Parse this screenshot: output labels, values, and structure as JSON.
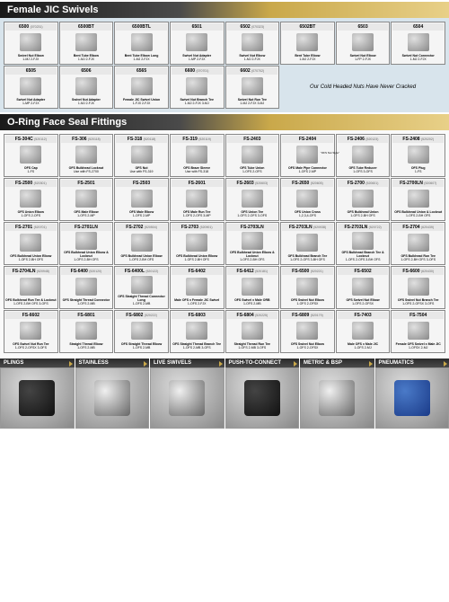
{
  "section1": {
    "title": "Female JIC Swivels",
    "note": "Our Cold Headed Nuts Have Never Cracked",
    "items": [
      {
        "pn": "6500",
        "code": "(070231)",
        "desc": "Swivel Nut Elbow",
        "spec": "1-MJ 2-FJX"
      },
      {
        "pn": "6500BT",
        "code": "",
        "desc": "Bent Tube Elbow",
        "spec": "1-MJ 2-FJX"
      },
      {
        "pn": "6500BTL",
        "code": "",
        "desc": "Bent Tube Elbow Long",
        "spec": "1-MJ 2-FJX"
      },
      {
        "pn": "6501",
        "code": "",
        "desc": "Swivel Nut Adapter",
        "spec": "1-MP 2-FJX"
      },
      {
        "pn": "6502",
        "code": "(070323)",
        "desc": "Swivel Nut Elbow",
        "spec": "1-MJ 2-FJX"
      },
      {
        "pn": "6502BT",
        "code": "",
        "desc": "Bent Tube Elbow",
        "spec": "1-MJ 2-FJX"
      },
      {
        "pn": "6503",
        "code": "",
        "desc": "Swivel Nut Elbow",
        "spec": "1-FP 2-FJX"
      },
      {
        "pn": "6504",
        "code": "",
        "desc": "Swivel Nut Connector",
        "spec": "1-MJ 2-FJX"
      },
      {
        "pn": "6505",
        "code": "",
        "desc": "Swivel Nut Adapter",
        "spec": "1-MP 2-FJX"
      },
      {
        "pn": "6506",
        "code": "",
        "desc": "Swivel Nut Adapter",
        "spec": "1-MJ 2-FJX"
      },
      {
        "pn": "6565",
        "code": "",
        "desc": "Female JIC Swivel Union",
        "spec": "1-FJX 2-FJX"
      },
      {
        "pn": "6600",
        "code": "(070701)",
        "desc": "Swivel Nut Branch Tee",
        "spec": "1-MJ 2-FJX 3-MJ"
      },
      {
        "pn": "6602",
        "code": "(070702)",
        "desc": "Swivel Nut Run Tee",
        "spec": "1-MJ 2-FJX 3-MJ"
      }
    ]
  },
  "section2": {
    "title": "O-Ring Face Seal Fittings",
    "items": [
      {
        "pn": "FS-304C",
        "code": "(520112)",
        "desc": "OFS Cap",
        "spec": "1-FS"
      },
      {
        "pn": "FS-306",
        "code": "(520118)",
        "desc": "OFS Bulkhead Locknut",
        "spec": "Use with FS-2700"
      },
      {
        "pn": "FS-318",
        "code": "(520118)",
        "desc": "OFS Nut",
        "spec": "Use with FS-319"
      },
      {
        "pn": "FS-319",
        "code": "(520119)",
        "desc": "OFS Braze Sleeve",
        "spec": "Use with FS-318"
      },
      {
        "pn": "FS-2403",
        "code": "",
        "desc": "OFS Tube Union",
        "spec": "1-OFS 2-OFS"
      },
      {
        "pn": "FS-2404",
        "code": "",
        "desc": "OFS Male Pipe Connector",
        "spec": "1-OFS 2-MP"
      },
      {
        "pn": "FS-2406",
        "code": "(520123)",
        "desc": "OFS Tube Reducer",
        "spec": "1-OFS 3-OFS"
      },
      {
        "pn": "FS-2408",
        "code": "(520202)",
        "desc": "OFS Plug",
        "spec": "1-FS"
      },
      {
        "pn": "FS-2500",
        "code": "(520301)",
        "desc": "OFS Union Elbow",
        "spec": "1-OFS 2-OFS"
      },
      {
        "pn": "FS-2501",
        "code": "",
        "desc": "OFS Male Elbow",
        "spec": "1-OFS 2-MP"
      },
      {
        "pn": "FS-2503",
        "code": "",
        "desc": "OFS Male Elbow",
        "spec": "1-OFS 2-MP"
      },
      {
        "pn": "FS-2601",
        "code": "",
        "desc": "OFS Male Run Tee",
        "spec": "1-OFS 2-OFS 3-MP"
      },
      {
        "pn": "FS-2603",
        "code": "(520603)",
        "desc": "OFS Union Tee",
        "spec": "1-OFS 2-OFS 3-OFS"
      },
      {
        "pn": "FS-2650",
        "code": "(520605)",
        "desc": "OFS Union Cross",
        "spec": "1,2,3,4-OFS"
      },
      {
        "pn": "FS-2700",
        "code": "(520601)",
        "desc": "OFS Bulkhead Union",
        "spec": "1-OFS 2-BH OFS"
      },
      {
        "pn": "FS-2700LN",
        "code": "(520607)",
        "desc": "OFS Bulkhead Union & Locknut",
        "spec": "1-OFS 2-BH OFS"
      },
      {
        "pn": "FS-2701",
        "code": "(520701)",
        "desc": "OFS Bulkhead Union Elbow",
        "spec": "1-OFS 2-BH OFS"
      },
      {
        "pn": "FS-2701LN",
        "code": "",
        "desc": "OFS Bulkhead Union Elbow & Locknut",
        "spec": "1-OFS 2-BH OFS"
      },
      {
        "pn": "FS-2702",
        "code": "(520504)",
        "desc": "OFS Bulkhead Union Elbow",
        "spec": "1-OFS 2-BH OFS"
      },
      {
        "pn": "FS-2703",
        "code": "(520901)",
        "desc": "OFS Bulkhead Union Elbow",
        "spec": "1-OFS 2-BH OFS"
      },
      {
        "pn": "FS-2703LN",
        "code": "",
        "desc": "OFS Bulkhead Union Elbow & Locknut",
        "spec": "1-OFS 2-BH OFS"
      },
      {
        "pn": "FS-2703LN",
        "code": "(520938)",
        "desc": "OFS Bulkhead Branch Tee",
        "spec": "1-OFS 2-OFS 3-BH OFS"
      },
      {
        "pn": "FS-2703LN",
        "code": "(520722)",
        "desc": "OFS Bulkhead Branch Tee & Locknut",
        "spec": "1-OFS 2-OFS 3-BH OFS"
      },
      {
        "pn": "FS-2704",
        "code": "(620439)",
        "desc": "OFS Bulkhead Run Tee",
        "spec": "1-OFS 2-BH OFS 3-OFS"
      },
      {
        "pn": "FS-2704LN",
        "code": "(520948)",
        "desc": "OFS Bulkhead Run Tee & Locknut",
        "spec": "1-OFS 2-BH OFS 3-OFS"
      },
      {
        "pn": "FS-6400",
        "code": "(520120)",
        "desc": "OFS Straight Thread Connector",
        "spec": "1-OFS 2-MB"
      },
      {
        "pn": "FS-6400L",
        "code": "(520122)",
        "desc": "OFS Straight Thread Connector Long",
        "spec": "1-OFS 2-MB"
      },
      {
        "pn": "FS-6402",
        "code": "",
        "desc": "Male OFS x Female JIC Swivel",
        "spec": "1-OFS 2-FJX"
      },
      {
        "pn": "FS-6412",
        "code": "(520181)",
        "desc": "OFS Swivel x Male ORB",
        "spec": "1-OFS 2-MB"
      },
      {
        "pn": "FS-6500",
        "code": "(520221)",
        "desc": "OFS Swivel Nut Elbow",
        "spec": "1-OFS 2-OFSX"
      },
      {
        "pn": "FS-6502",
        "code": "",
        "desc": "OFS Swivel Nut Elbow",
        "spec": "1-OFS 2-OFSX"
      },
      {
        "pn": "FS-6600",
        "code": "(620430)",
        "desc": "OFS Swivel Nut Branch Tee",
        "spec": "1-OFS 2-OFSX 3-OFS"
      },
      {
        "pn": "FS-6602",
        "code": "",
        "desc": "OFS Swivel Nut Run Tee",
        "spec": "1-OFS 2-OFSX 3-OFS"
      },
      {
        "pn": "FS-6801",
        "code": "",
        "desc": "Straight Thread Elbow",
        "spec": "1-OFS 2-MB"
      },
      {
        "pn": "FS-6802",
        "code": "(520222)",
        "desc": "OFS Straight Thread Elbow",
        "spec": "1-OFS 2-MB"
      },
      {
        "pn": "FS-6803",
        "code": "",
        "desc": "OFS Straight Thread Branch Tee",
        "spec": "1-OFS 2-MB 3-OFS"
      },
      {
        "pn": "FS-6804",
        "code": "(520225)",
        "desc": "Straight Thread Run Tee",
        "spec": "1-OFS 2-MB 3-OFS"
      },
      {
        "pn": "FS-6809",
        "code": "(520179)",
        "desc": "OFS Swivel Nut Elbow",
        "spec": "1-OFS 2-OFSX"
      },
      {
        "pn": "FS-7403",
        "code": "",
        "desc": "Male OFS x Male JIC",
        "spec": "1-OFS 2-MJ"
      },
      {
        "pn": "FS-7504",
        "code": "",
        "desc": "Female OFS Swivel x Male JIC",
        "spec": "1-OFSX 2-MJ"
      }
    ],
    "styleNote": "\"OFS Nut Style\"",
    "styleNote2": "\"Crimp Style\""
  },
  "tabs": [
    "PLINGS",
    "STAINLESS",
    "LIVE SWIVELS",
    "PUSH-TO-CONNECT",
    "METRIC & BSP",
    "PNEUMATICS"
  ],
  "colors": {
    "headerGradStart": "#1a1a1a",
    "headerGradEnd": "#e8d088",
    "section1Bg": "#d8e4ec"
  }
}
